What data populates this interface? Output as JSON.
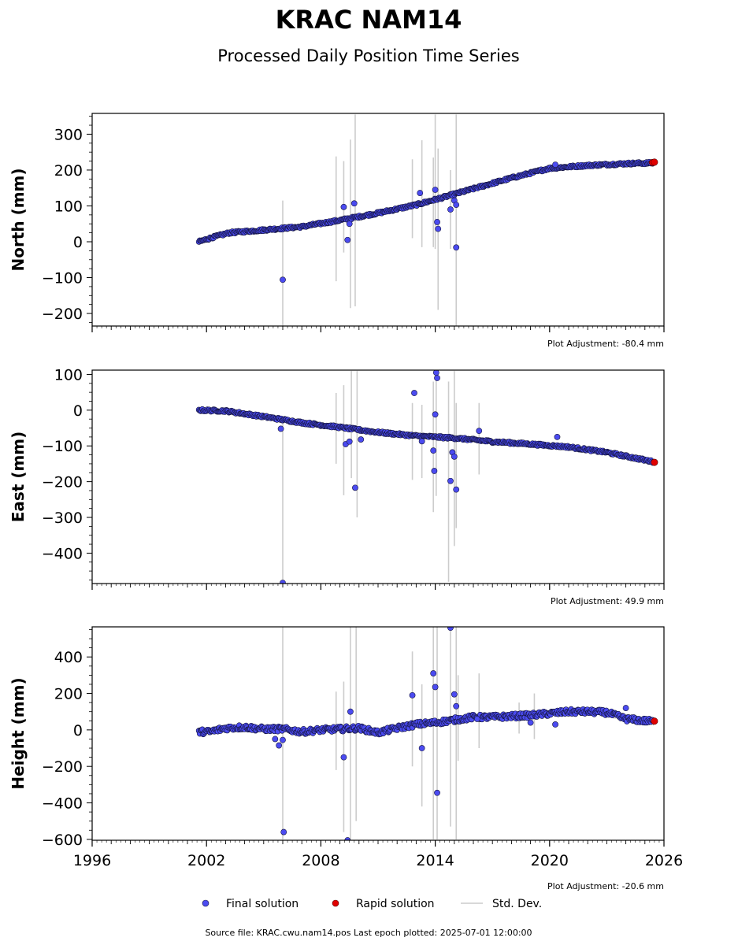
{
  "title": "KRAC NAM14",
  "subtitle": "Processed Daily Position Time Series",
  "colors": {
    "final": "#4b4bf0",
    "final_edge": "#14143c",
    "rapid": "#e00000",
    "stddev": "#cccccc"
  },
  "legend": {
    "final": "Final solution",
    "rapid": "Rapid solution",
    "stddev": "Std. Dev."
  },
  "footer": "Source file: KRAC.cwu.nam14.pos  Last epoch plotted: 2025-07-01 12:00:00",
  "chart_data": [
    {
      "type": "scatter",
      "ylabel": "North (mm)",
      "adjustment": "Plot Adjustment: -80.4 mm",
      "xlim": [
        1996,
        2026
      ],
      "ylim": [
        -235,
        358
      ],
      "yticks": [
        -200,
        -100,
        0,
        100,
        200,
        300
      ],
      "trend": [
        [
          2001.6,
          0
        ],
        [
          2002.3,
          12
        ],
        [
          2003.2,
          25
        ],
        [
          2005,
          33
        ],
        [
          2007,
          42
        ],
        [
          2009,
          60
        ],
        [
          2011,
          80
        ],
        [
          2013,
          103
        ],
        [
          2014.5,
          125
        ],
        [
          2016,
          148
        ],
        [
          2018,
          178
        ],
        [
          2020,
          205
        ],
        [
          2022,
          213
        ],
        [
          2024,
          218
        ],
        [
          2025.5,
          220
        ]
      ],
      "outliers": [
        [
          2006.0,
          -106
        ],
        [
          2009.2,
          97
        ],
        [
          2009.4,
          5
        ],
        [
          2009.5,
          50
        ],
        [
          2009.75,
          107
        ],
        [
          2013.2,
          136
        ],
        [
          2014.0,
          145
        ],
        [
          2014.1,
          55
        ],
        [
          2014.15,
          36
        ],
        [
          2014.8,
          90
        ],
        [
          2015.0,
          115
        ],
        [
          2015.1,
          103
        ],
        [
          2015.1,
          -16
        ],
        [
          2020.3,
          215
        ]
      ],
      "errorbars": [
        [
          2006.0,
          -235,
          115
        ],
        [
          2008.8,
          -110,
          238
        ],
        [
          2009.2,
          -30,
          225
        ],
        [
          2009.55,
          -185,
          285
        ],
        [
          2009.8,
          -180,
          355
        ],
        [
          2012.8,
          10,
          230
        ],
        [
          2013.3,
          -15,
          283
        ],
        [
          2013.9,
          -15,
          235
        ],
        [
          2014.0,
          -20,
          355
        ],
        [
          2014.15,
          -190,
          260
        ],
        [
          2014.8,
          -20,
          200
        ],
        [
          2015.1,
          -235,
          355
        ]
      ],
      "rapid": [
        [
          2025.4,
          221
        ],
        [
          2025.5,
          222
        ]
      ]
    },
    {
      "type": "scatter",
      "ylabel": "East (mm)",
      "adjustment": "Plot Adjustment: 49.9 mm",
      "xlim": [
        1996,
        2026
      ],
      "ylim": [
        -485,
        112
      ],
      "yticks": [
        -400,
        -300,
        -200,
        -100,
        0,
        100
      ],
      "trend": [
        [
          2001.6,
          0
        ],
        [
          2003,
          -2
        ],
        [
          2005,
          -18
        ],
        [
          2007,
          -35
        ],
        [
          2009,
          -48
        ],
        [
          2011,
          -62
        ],
        [
          2013,
          -72
        ],
        [
          2015,
          -78
        ],
        [
          2017,
          -88
        ],
        [
          2019,
          -95
        ],
        [
          2021,
          -103
        ],
        [
          2023,
          -118
        ],
        [
          2025.5,
          -145
        ]
      ],
      "outliers": [
        [
          2005.9,
          -52
        ],
        [
          2006.0,
          -483
        ],
        [
          2009.3,
          -95
        ],
        [
          2009.5,
          -88
        ],
        [
          2009.8,
          -217
        ],
        [
          2010.1,
          -82
        ],
        [
          2012.9,
          48
        ],
        [
          2013.3,
          -87
        ],
        [
          2013.9,
          -113
        ],
        [
          2013.95,
          -170
        ],
        [
          2014.0,
          -12
        ],
        [
          2014.05,
          105
        ],
        [
          2014.1,
          90
        ],
        [
          2014.8,
          -198
        ],
        [
          2014.9,
          -118
        ],
        [
          2015.0,
          -130
        ],
        [
          2015.1,
          -222
        ],
        [
          2016.3,
          -58
        ],
        [
          2020.4,
          -75
        ]
      ],
      "errorbars": [
        [
          2006.0,
          -485,
          -20
        ],
        [
          2008.8,
          -150,
          48
        ],
        [
          2009.2,
          -238,
          70
        ],
        [
          2009.6,
          -190,
          110
        ],
        [
          2009.9,
          -300,
          110
        ],
        [
          2012.8,
          -195,
          20
        ],
        [
          2013.3,
          -190,
          15
        ],
        [
          2013.9,
          -285,
          80
        ],
        [
          2014.05,
          -240,
          110
        ],
        [
          2014.7,
          -480,
          80
        ],
        [
          2015.0,
          -380,
          110
        ],
        [
          2015.1,
          -330,
          20
        ],
        [
          2016.3,
          -180,
          20
        ]
      ],
      "rapid": [
        [
          2025.5,
          -146
        ]
      ]
    },
    {
      "type": "scatter",
      "ylabel": "Height (mm)",
      "adjustment": "Plot Adjustment: -20.6 mm",
      "xlim": [
        1996,
        2026
      ],
      "ylim": [
        -605,
        565
      ],
      "yticks": [
        -600,
        -400,
        -200,
        0,
        200,
        400
      ],
      "trend": [
        [
          2001.6,
          -10
        ],
        [
          2002.2,
          -10
        ],
        [
          2003,
          10
        ],
        [
          2004,
          15
        ],
        [
          2005,
          5
        ],
        [
          2006,
          5
        ],
        [
          2007,
          -10
        ],
        [
          2008,
          0
        ],
        [
          2009,
          5
        ],
        [
          2010,
          10
        ],
        [
          2011,
          -15
        ],
        [
          2012,
          10
        ],
        [
          2013,
          30
        ],
        [
          2014,
          40
        ],
        [
          2015,
          55
        ],
        [
          2016,
          70
        ],
        [
          2017,
          70
        ],
        [
          2018,
          75
        ],
        [
          2019,
          80
        ],
        [
          2020,
          90
        ],
        [
          2021,
          100
        ],
        [
          2022,
          100
        ],
        [
          2023,
          95
        ],
        [
          2024,
          60
        ],
        [
          2025.5,
          45
        ]
      ],
      "outliers": [
        [
          2005.6,
          -50
        ],
        [
          2005.8,
          -85
        ],
        [
          2006.0,
          -55
        ],
        [
          2006.05,
          -560
        ],
        [
          2009.2,
          -150
        ],
        [
          2009.4,
          -605
        ],
        [
          2009.55,
          100
        ],
        [
          2012.8,
          190
        ],
        [
          2013.3,
          -100
        ],
        [
          2013.9,
          310
        ],
        [
          2014.0,
          235
        ],
        [
          2014.1,
          -345
        ],
        [
          2014.8,
          560
        ],
        [
          2015.0,
          195
        ],
        [
          2015.1,
          130
        ],
        [
          2016.2,
          60
        ],
        [
          2019.0,
          40
        ],
        [
          2020.3,
          30
        ],
        [
          2024.0,
          120
        ]
      ],
      "errorbars": [
        [
          2006.0,
          -600,
          565
        ],
        [
          2008.8,
          -220,
          210
        ],
        [
          2009.2,
          -560,
          265
        ],
        [
          2009.55,
          -600,
          565
        ],
        [
          2009.85,
          -500,
          565
        ],
        [
          2012.8,
          -200,
          430
        ],
        [
          2013.3,
          -420,
          250
        ],
        [
          2013.9,
          -600,
          565
        ],
        [
          2014.1,
          -600,
          565
        ],
        [
          2014.8,
          -530,
          565
        ],
        [
          2015.1,
          -600,
          565
        ],
        [
          2015.2,
          -170,
          300
        ],
        [
          2016.3,
          -100,
          310
        ],
        [
          2018.4,
          -20,
          150
        ],
        [
          2019.2,
          -50,
          200
        ]
      ],
      "rapid": [
        [
          2025.5,
          48
        ]
      ]
    }
  ],
  "xticks": [
    "1996",
    "2002",
    "2008",
    "2014",
    "2020",
    "2026"
  ]
}
